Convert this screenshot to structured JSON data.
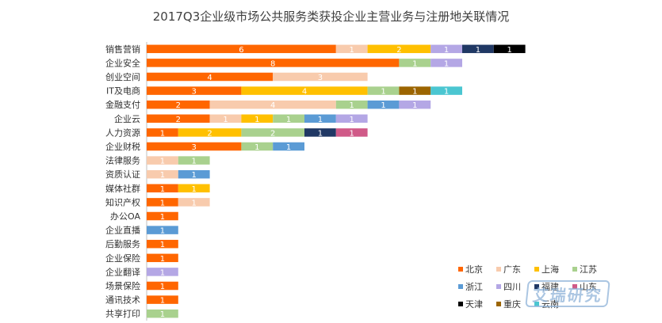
{
  "chart_data": {
    "type": "bar",
    "orientation": "horizontal",
    "stacked": true,
    "title": "2017Q3企业级市场公共服务类获投企业主营业务与注册地关联情况",
    "categories": [
      "销售营销",
      "企业安全",
      "创业空间",
      "IT及电商",
      "金融支付",
      "企业云",
      "人力资源",
      "企业财税",
      "法律服务",
      "资质认证",
      "媒体社群",
      "知识产权",
      "办公OA",
      "企业直播",
      "后勤服务",
      "企业保险",
      "企业翻译",
      "场景保险",
      "通讯技术",
      "共享打印"
    ],
    "series": [
      {
        "name": "北京",
        "color": "#FF6600",
        "values": [
          6,
          8,
          4,
          3,
          2,
          2,
          1,
          3,
          0,
          0,
          1,
          1,
          1,
          0,
          1,
          1,
          0,
          1,
          1,
          0
        ]
      },
      {
        "name": "广东",
        "color": "#F8CBAD",
        "values": [
          1,
          0,
          3,
          0,
          4,
          1,
          0,
          0,
          1,
          1,
          0,
          1,
          0,
          0,
          0,
          0,
          0,
          0,
          0,
          0
        ]
      },
      {
        "name": "上海",
        "color": "#FFC000",
        "values": [
          2,
          0,
          0,
          4,
          0,
          1,
          2,
          0,
          0,
          0,
          1,
          0,
          0,
          0,
          0,
          0,
          0,
          0,
          0,
          0
        ]
      },
      {
        "name": "江苏",
        "color": "#A9D18E",
        "values": [
          0,
          1,
          0,
          1,
          1,
          1,
          2,
          1,
          1,
          0,
          0,
          0,
          0,
          0,
          0,
          0,
          0,
          0,
          0,
          1
        ]
      },
      {
        "name": "浙江",
        "color": "#5B9BD5",
        "values": [
          0,
          0,
          0,
          0,
          1,
          1,
          0,
          1,
          0,
          1,
          0,
          0,
          0,
          1,
          0,
          0,
          0,
          0,
          0,
          0
        ]
      },
      {
        "name": "四川",
        "color": "#B4A7E5",
        "values": [
          1,
          1,
          0,
          0,
          1,
          1,
          0,
          0,
          0,
          0,
          0,
          0,
          0,
          0,
          0,
          0,
          1,
          0,
          0,
          0
        ]
      },
      {
        "name": "福建",
        "color": "#203864",
        "values": [
          1,
          0,
          0,
          0,
          0,
          0,
          1,
          0,
          0,
          0,
          0,
          0,
          0,
          0,
          0,
          0,
          0,
          0,
          0,
          0
        ]
      },
      {
        "name": "山东",
        "color": "#D05A88",
        "values": [
          0,
          0,
          0,
          0,
          0,
          0,
          1,
          0,
          0,
          0,
          0,
          0,
          0,
          0,
          0,
          0,
          0,
          0,
          0,
          0
        ]
      },
      {
        "name": "天津",
        "color": "#000000",
        "values": [
          1,
          0,
          0,
          0,
          0,
          0,
          0,
          0,
          0,
          0,
          0,
          0,
          0,
          0,
          0,
          0,
          0,
          0,
          0,
          0
        ]
      },
      {
        "name": "重庆",
        "color": "#9C6500",
        "values": [
          0,
          0,
          0,
          1,
          0,
          0,
          0,
          0,
          0,
          0,
          0,
          0,
          0,
          0,
          0,
          0,
          0,
          0,
          0,
          0
        ]
      },
      {
        "name": "云南",
        "color": "#4BC6D1",
        "values": [
          0,
          0,
          0,
          1,
          0,
          0,
          0,
          0,
          0,
          0,
          0,
          0,
          0,
          0,
          0,
          0,
          0,
          0,
          0,
          0
        ]
      }
    ],
    "xlim": [
      0,
      12
    ],
    "grid": false,
    "legend_position": "bottom-right"
  },
  "watermark": "艾瑞研究"
}
